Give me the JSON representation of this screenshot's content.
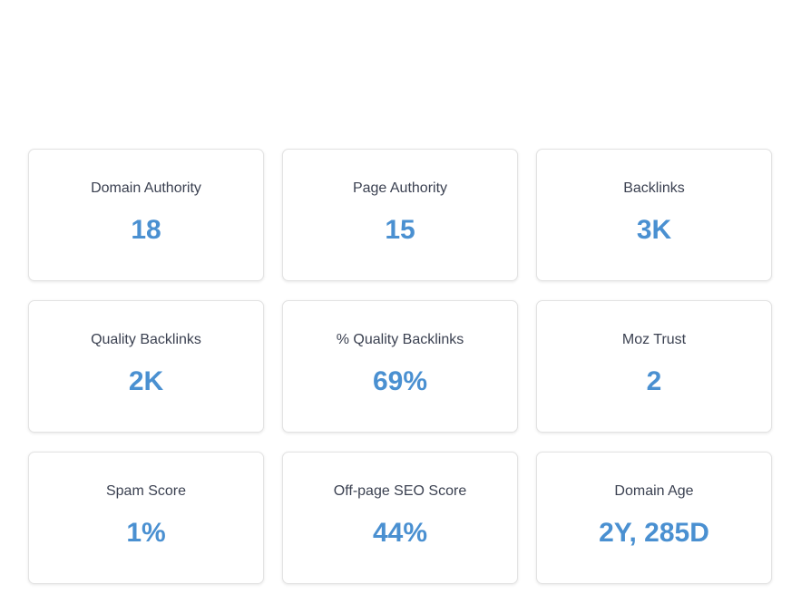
{
  "metrics": [
    {
      "label": "Domain Authority",
      "value": "18"
    },
    {
      "label": "Page Authority",
      "value": "15"
    },
    {
      "label": "Backlinks",
      "value": "3K"
    },
    {
      "label": "Quality Backlinks",
      "value": "2K"
    },
    {
      "label": "% Quality Backlinks",
      "value": "69%"
    },
    {
      "label": "Moz Trust",
      "value": "2"
    },
    {
      "label": "Spam Score",
      "value": "1%"
    },
    {
      "label": "Off-page SEO Score",
      "value": "44%"
    },
    {
      "label": "Domain Age",
      "value": "2Y, 285D"
    }
  ],
  "colors": {
    "value": "#4a90d1",
    "label": "#3b4151",
    "card_border": "#e3e3e3",
    "background": "#ffffff"
  }
}
